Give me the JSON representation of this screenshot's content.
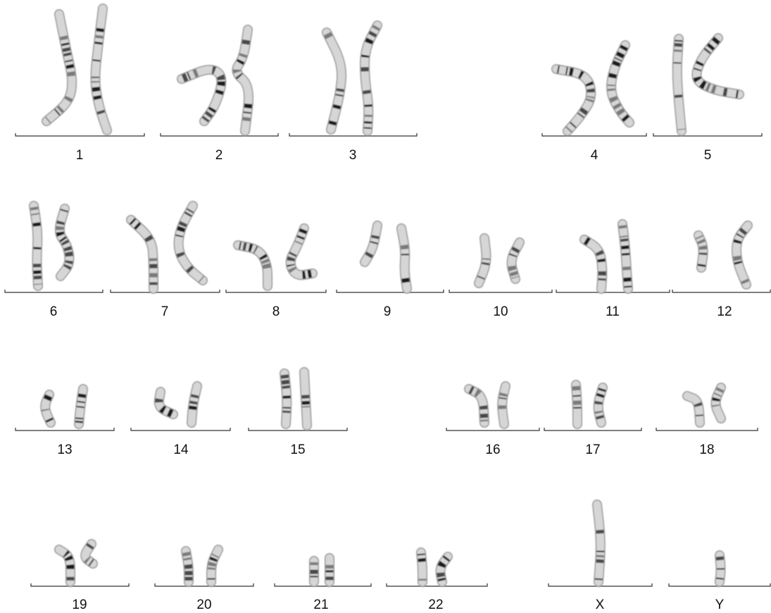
{
  "karyotype": {
    "chromosomes": [
      {
        "label": "1"
      },
      {
        "label": "2"
      },
      {
        "label": "3"
      },
      {
        "label": "4"
      },
      {
        "label": "5"
      },
      {
        "label": "6"
      },
      {
        "label": "7"
      },
      {
        "label": "8"
      },
      {
        "label": "9"
      },
      {
        "label": "10"
      },
      {
        "label": "11"
      },
      {
        "label": "12"
      },
      {
        "label": "13"
      },
      {
        "label": "14"
      },
      {
        "label": "15"
      },
      {
        "label": "16"
      },
      {
        "label": "17"
      },
      {
        "label": "18"
      },
      {
        "label": "19"
      },
      {
        "label": "20"
      },
      {
        "label": "21"
      },
      {
        "label": "22"
      },
      {
        "label": "X"
      },
      {
        "label": "Y"
      }
    ]
  }
}
